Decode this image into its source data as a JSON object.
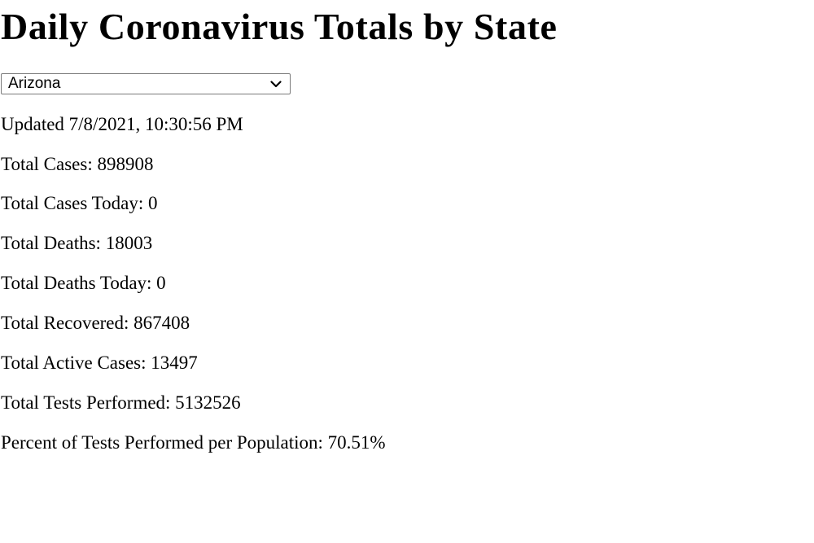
{
  "page": {
    "title": "Daily Coronavirus Totals by State"
  },
  "state_select": {
    "selected": "Arizona"
  },
  "stats": {
    "updated": "Updated 7/8/2021, 10:30:56 PM",
    "total_cases": "Total Cases: 898908",
    "total_cases_today": "Total Cases Today: 0",
    "total_deaths": "Total Deaths: 18003",
    "total_deaths_today": "Total Deaths Today: 0",
    "total_recovered": "Total Recovered: 867408",
    "total_active_cases": "Total Active Cases: 13497",
    "total_tests_performed": "Total Tests Performed: 5132526",
    "percent_tests_per_population": "Percent of Tests Performed per Population: 70.51%"
  },
  "icons": {
    "dropdown": "chevron-down-icon"
  }
}
